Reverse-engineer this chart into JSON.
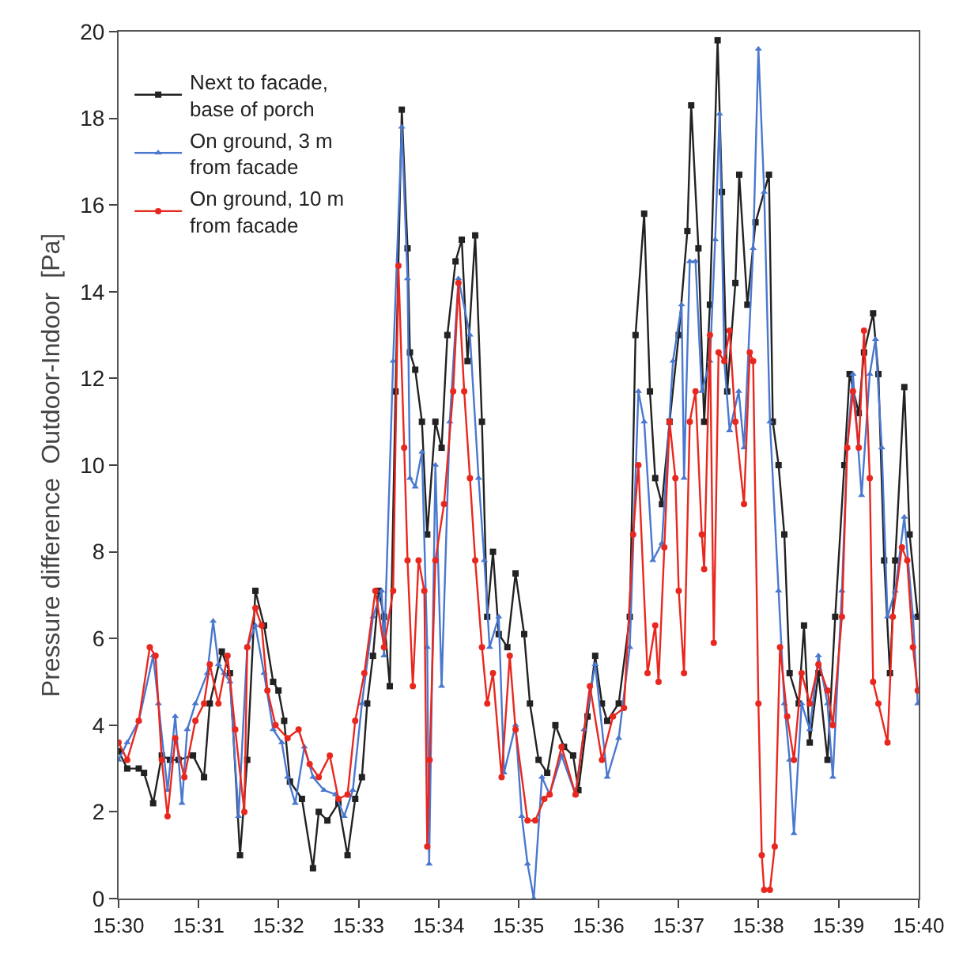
{
  "chart_data": {
    "type": "line",
    "ylabel": "Pressure difference  Outdoor-Indoor  [Pa]",
    "xlim": [
      15.5,
      15.6667
    ],
    "xticks": [
      {
        "value": 15.5,
        "label": "15:30"
      },
      {
        "value": 15.5167,
        "label": "15:31"
      },
      {
        "value": 15.5333,
        "label": "15:32"
      },
      {
        "value": 15.55,
        "label": "15:33"
      },
      {
        "value": 15.5667,
        "label": "15:34"
      },
      {
        "value": 15.5833,
        "label": "15:35"
      },
      {
        "value": 15.6,
        "label": "15:36"
      },
      {
        "value": 15.6167,
        "label": "15:37"
      },
      {
        "value": 15.6333,
        "label": "15:38"
      },
      {
        "value": 15.65,
        "label": "15:39"
      },
      {
        "value": 15.6667,
        "label": "15:40"
      }
    ],
    "ylim": [
      0,
      20
    ],
    "yticks": [
      0,
      2,
      4,
      6,
      8,
      10,
      12,
      14,
      16,
      18,
      20
    ],
    "grid": false,
    "legend": "top left",
    "line_style": "solid",
    "series": [
      {
        "name": "Next to facade, base of porch",
        "color": "#222222",
        "marker": "square",
        "x": [
          15.5,
          15.5018,
          15.5042,
          15.5053,
          15.5072,
          15.509,
          15.5107,
          15.5125,
          15.5155,
          15.5178,
          15.519,
          15.5215,
          15.5232,
          15.5253,
          15.5268,
          15.5285,
          15.5303,
          15.5322,
          15.5333,
          15.5345,
          15.5357,
          15.5382,
          15.5405,
          15.5417,
          15.5435,
          15.5458,
          15.5477,
          15.5493,
          15.5507,
          15.5518,
          15.553,
          15.5542,
          15.5553,
          15.5565,
          15.5577,
          15.559,
          15.5602,
          15.5607,
          15.5618,
          15.5632,
          15.5643,
          15.566,
          15.5673,
          15.5685,
          15.5702,
          15.5715,
          15.5727,
          15.5743,
          15.5757,
          15.5768,
          15.578,
          15.5792,
          15.581,
          15.5827,
          15.5845,
          15.5857,
          15.5875,
          15.5893,
          15.591,
          15.5928,
          15.5947,
          15.5958,
          15.5977,
          15.5993,
          15.6007,
          15.6018,
          15.6042,
          15.6065,
          15.6077,
          15.6095,
          15.6107,
          15.6118,
          15.6132,
          15.6148,
          15.6167,
          15.6185,
          15.6193,
          15.6208,
          15.622,
          15.6232,
          15.6248,
          15.6257,
          15.6268,
          15.6285,
          15.6293,
          15.631,
          15.6327,
          15.6355,
          15.6363,
          15.6375,
          15.6387,
          15.6398,
          15.6417,
          15.6428,
          15.644,
          15.6458,
          15.6477,
          15.6493,
          15.6512,
          15.6523,
          15.6542,
          15.6553,
          15.6572,
          15.6583,
          15.6595,
          15.6607,
          15.6618,
          15.6637,
          15.6648,
          15.6665
        ],
        "values": [
          3.4,
          3.0,
          3.0,
          2.9,
          2.2,
          3.3,
          3.2,
          3.2,
          3.3,
          2.8,
          4.5,
          5.7,
          5.2,
          1.0,
          3.2,
          7.1,
          6.3,
          5.0,
          4.8,
          4.1,
          2.7,
          2.3,
          0.7,
          2.0,
          1.8,
          2.2,
          1.0,
          2.3,
          2.8,
          4.5,
          5.6,
          7.1,
          6.5,
          4.9,
          11.7,
          18.2,
          15.0,
          12.6,
          12.2,
          11.0,
          8.4,
          11.0,
          10.4,
          13.0,
          14.7,
          15.2,
          12.4,
          15.3,
          11.0,
          6.5,
          8.0,
          6.1,
          5.8,
          7.5,
          6.1,
          4.5,
          3.2,
          2.9,
          4.0,
          3.5,
          3.3,
          2.5,
          4.2,
          5.6,
          4.5,
          4.1,
          4.5,
          6.5,
          13.0,
          15.8,
          11.7,
          9.7,
          9.1,
          11.0,
          13.0,
          15.4,
          18.3,
          15.0,
          11.0,
          13.7,
          19.8,
          16.3,
          11.7,
          14.2,
          16.7,
          13.7,
          15.6,
          16.7,
          11.0,
          10.0,
          8.4,
          5.2,
          4.5,
          6.3,
          3.6,
          5.2,
          3.2,
          6.5,
          10.0,
          12.1,
          11.2,
          12.6,
          13.5,
          12.1,
          7.8,
          5.2,
          7.8,
          11.8,
          8.4,
          6.5
        ]
      },
      {
        "name": "On ground, 3 m from facade",
        "color": "#4a78cf",
        "marker": "triangle",
        "x": [
          15.5,
          15.5018,
          15.5042,
          15.5072,
          15.5083,
          15.5102,
          15.5118,
          15.5132,
          15.5143,
          15.516,
          15.5185,
          15.5197,
          15.5208,
          15.522,
          15.5232,
          15.525,
          15.5268,
          15.5285,
          15.5303,
          15.5322,
          15.534,
          15.5352,
          15.5368,
          15.5387,
          15.5405,
          15.5428,
          15.5452,
          15.547,
          15.5488,
          15.5507,
          15.553,
          15.5548,
          15.5553,
          15.5572,
          15.559,
          15.5602,
          15.5607,
          15.5618,
          15.5632,
          15.5643,
          15.5647,
          15.566,
          15.5673,
          15.569,
          15.5708,
          15.5732,
          15.575,
          15.5762,
          15.5773,
          15.5792,
          15.5803,
          15.5827,
          15.584,
          15.5852,
          15.5865,
          15.5882,
          15.5898,
          15.5923,
          15.5952,
          15.597,
          15.5993,
          15.6018,
          15.6042,
          15.6065,
          15.6083,
          15.6095,
          15.6113,
          15.6132,
          15.6155,
          15.6173,
          15.6178,
          15.619,
          15.6202,
          15.6215,
          15.6232,
          15.6243,
          15.6252,
          15.6262,
          15.6273,
          15.6292,
          15.6303,
          15.6322,
          15.6333,
          15.6345,
          15.6357,
          15.6375,
          15.6387,
          15.6398,
          15.6407,
          15.6423,
          15.644,
          15.6458,
          15.6477,
          15.6488,
          15.6507,
          15.6518,
          15.653,
          15.6548,
          15.6565,
          15.6577,
          15.659,
          15.6602,
          15.6618,
          15.6637,
          15.6655,
          15.6665
        ],
        "values": [
          3.2,
          3.6,
          4.1,
          5.6,
          4.5,
          2.5,
          4.2,
          2.2,
          3.9,
          4.5,
          5.2,
          6.4,
          5.4,
          5.2,
          5.0,
          1.9,
          5.8,
          6.3,
          5.2,
          3.9,
          3.6,
          2.8,
          2.2,
          3.5,
          2.8,
          2.5,
          2.4,
          1.9,
          2.5,
          4.5,
          6.5,
          7.1,
          5.6,
          12.4,
          17.8,
          14.3,
          9.7,
          9.5,
          10.3,
          5.8,
          0.8,
          10.0,
          4.9,
          11.0,
          14.3,
          13.0,
          9.7,
          7.8,
          5.8,
          6.5,
          2.9,
          4.0,
          1.9,
          0.8,
          0.0,
          2.8,
          2.4,
          3.3,
          2.4,
          3.9,
          5.4,
          2.8,
          3.7,
          5.8,
          11.7,
          11.0,
          7.8,
          8.2,
          12.4,
          13.7,
          9.7,
          14.7,
          14.7,
          11.7,
          12.4,
          15.2,
          18.1,
          12.4,
          10.8,
          11.7,
          10.4,
          15.0,
          19.6,
          16.3,
          11.0,
          7.1,
          4.5,
          3.2,
          1.5,
          4.5,
          3.9,
          5.6,
          4.5,
          2.8,
          7.1,
          10.4,
          12.1,
          9.3,
          12.1,
          12.9,
          10.4,
          6.5,
          7.1,
          8.8,
          6.5,
          4.5
        ]
      },
      {
        "name": "On ground, 10 m from facade",
        "color": "#e8281f",
        "marker": "circle",
        "x": [
          15.5,
          15.5018,
          15.5042,
          15.5065,
          15.5077,
          15.509,
          15.5102,
          15.5118,
          15.5137,
          15.516,
          15.5178,
          15.519,
          15.5208,
          15.5227,
          15.5243,
          15.5262,
          15.5268,
          15.5285,
          15.5298,
          15.531,
          15.5327,
          15.5352,
          15.5375,
          15.5398,
          15.5417,
          15.544,
          15.5458,
          15.5477,
          15.5493,
          15.5512,
          15.5535,
          15.5553,
          15.5572,
          15.5583,
          15.5595,
          15.5602,
          15.5613,
          15.5625,
          15.5637,
          15.5643,
          15.5648,
          15.566,
          15.5678,
          15.5697,
          15.5708,
          15.572,
          15.5732,
          15.5743,
          15.5757,
          15.5768,
          15.578,
          15.5798,
          15.5815,
          15.5827,
          15.5852,
          15.5868,
          15.5887,
          15.5898,
          15.5923,
          15.5952,
          15.5982,
          15.6007,
          15.603,
          15.6053,
          15.6072,
          15.6083,
          15.6102,
          15.6118,
          15.6125,
          15.6137,
          15.6148,
          15.616,
          15.6167,
          15.6178,
          15.619,
          15.6202,
          15.6215,
          15.622,
          15.6232,
          15.624,
          15.625,
          15.6262,
          15.6273,
          15.6285,
          15.6303,
          15.6315,
          15.6322,
          15.6333,
          15.634,
          15.6345,
          15.6357,
          15.6367,
          15.6378,
          15.6393,
          15.6407,
          15.6423,
          15.644,
          15.6458,
          15.6477,
          15.6488,
          15.6507,
          15.6518,
          15.653,
          15.6542,
          15.6553,
          15.6565,
          15.6572,
          15.6583,
          15.6602,
          15.6613,
          15.6632,
          15.6643,
          15.6655,
          15.6665
        ],
        "values": [
          3.6,
          3.2,
          4.1,
          5.8,
          5.6,
          3.2,
          1.9,
          3.7,
          2.8,
          4.1,
          4.5,
          5.4,
          4.5,
          5.6,
          3.9,
          2.0,
          5.8,
          6.7,
          6.3,
          4.8,
          4.0,
          3.7,
          3.9,
          3.1,
          2.8,
          3.3,
          2.3,
          2.4,
          4.1,
          5.2,
          7.1,
          5.8,
          7.1,
          14.6,
          10.4,
          7.8,
          4.9,
          7.8,
          7.1,
          1.2,
          3.2,
          7.8,
          9.1,
          11.7,
          14.2,
          11.7,
          9.7,
          7.8,
          5.8,
          4.5,
          5.2,
          2.8,
          5.6,
          3.9,
          1.8,
          1.8,
          2.3,
          2.4,
          3.5,
          2.4,
          4.9,
          3.2,
          4.2,
          4.4,
          8.4,
          10.0,
          5.2,
          6.3,
          5.0,
          8.1,
          11.0,
          9.7,
          7.1,
          5.2,
          11.0,
          11.7,
          8.4,
          7.6,
          13.0,
          5.9,
          12.6,
          12.4,
          13.1,
          11.0,
          9.1,
          12.6,
          12.4,
          4.5,
          1.0,
          0.2,
          0.2,
          1.2,
          5.8,
          4.2,
          3.2,
          5.2,
          4.5,
          5.4,
          4.8,
          4.0,
          6.5,
          10.4,
          11.7,
          10.4,
          13.1,
          9.7,
          5.0,
          4.5,
          3.6,
          6.5,
          8.1,
          7.8,
          5.8,
          4.8
        ]
      }
    ]
  }
}
